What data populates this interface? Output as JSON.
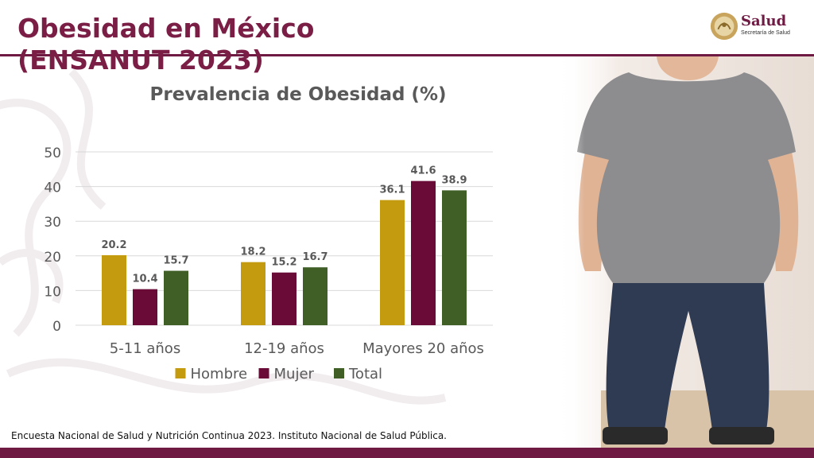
{
  "slide": {
    "title": "Obesidad en México (ENSANUT 2023)",
    "source": "Encuesta Nacional de Salud y Nutrición Continua 2023. Instituto Nacional de Salud Pública.",
    "logo": {
      "name": "Salud",
      "subtitle": "Secretaría de Salud"
    }
  },
  "colors": {
    "brand": "#6e1a42",
    "hombre": "#c49a0e",
    "mujer": "#6a0a36",
    "total": "#3f5f27",
    "grid": "#d9d9d9",
    "label": "#595959"
  },
  "chart_data": {
    "type": "bar",
    "title": "Prevalencia de Obesidad (%)",
    "categories": [
      "5-11 años",
      "12-19 años",
      "Mayores 20 años"
    ],
    "series": [
      {
        "name": "Hombre",
        "values": [
          20.2,
          18.2,
          36.1
        ],
        "color": "#c49a0e"
      },
      {
        "name": "Mujer",
        "values": [
          10.4,
          15.2,
          41.6
        ],
        "color": "#6a0a36"
      },
      {
        "name": "Total",
        "values": [
          15.7,
          16.7,
          38.9
        ],
        "color": "#3f5f27"
      }
    ],
    "ylim": [
      0,
      50
    ],
    "yticks": [
      0,
      10,
      20,
      30,
      40,
      50
    ],
    "grid": true,
    "legend": "bottom",
    "xlabel": "",
    "ylabel": ""
  },
  "photo": {
    "icon": "person-photo"
  }
}
